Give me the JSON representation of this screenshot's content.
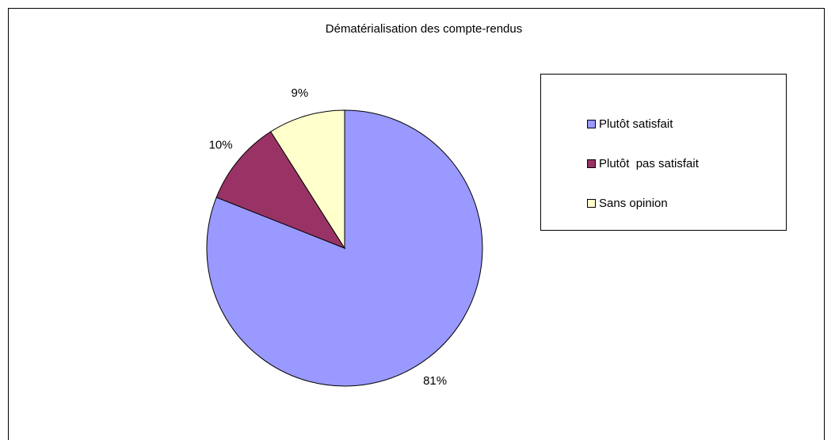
{
  "chart_data": {
    "type": "pie",
    "title": "Dématérialisation des compte-rendus",
    "categories": [
      "Plutôt satisfait",
      "Plutôt  pas satisfait",
      "Sans opinion"
    ],
    "values": [
      81,
      10,
      9
    ],
    "value_labels": [
      "81%",
      "10%",
      "9%"
    ],
    "colors": [
      "#9999ff",
      "#993366",
      "#ffffcc"
    ],
    "start_angle": 0,
    "direction": "clockwise",
    "legend": "right"
  }
}
